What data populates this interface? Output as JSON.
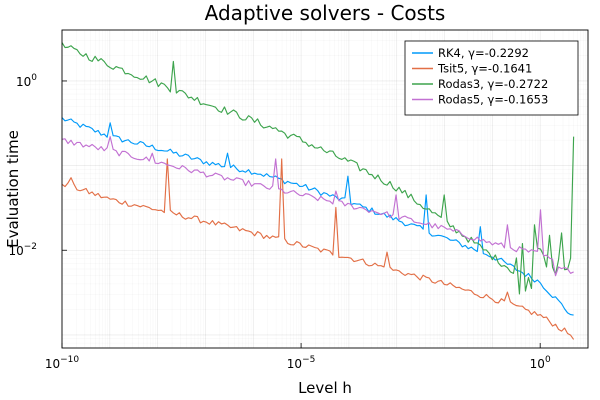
{
  "chart_data": {
    "type": "line",
    "title": "Adaptive solvers - Costs",
    "xlabel": "Level h",
    "ylabel": "Evaluation time",
    "xscale": "log",
    "yscale": "log",
    "xlim": [
      1e-10,
      10
    ],
    "ylim": [
      0.0007,
      4
    ],
    "x_ticks": [
      {
        "value": 1e-10,
        "base": "10",
        "exp": "−10"
      },
      {
        "value": 1e-05,
        "base": "10",
        "exp": "−5"
      },
      {
        "value": 1,
        "base": "10",
        "exp": "0"
      }
    ],
    "y_ticks": [
      {
        "value": 0.01,
        "base": "10",
        "exp": "−2"
      },
      {
        "value": 1,
        "base": "10",
        "exp": "0"
      }
    ],
    "grid": true,
    "legend_position": "top-right",
    "series": [
      {
        "name": "RK4, γ=-0.2292",
        "color": "#009AFA",
        "x": [
          1e-10,
          1e-09,
          1e-08,
          1e-07,
          1e-06,
          1e-05,
          0.0001,
          0.001,
          0.01,
          0.1,
          1,
          5
        ],
        "values": [
          0.36,
          0.22,
          0.16,
          0.11,
          0.085,
          0.058,
          0.037,
          0.023,
          0.014,
          0.0085,
          0.0042,
          0.0016
        ],
        "spikes": [
          [
            1e-09,
            0.32
          ],
          [
            3e-07,
            0.14
          ],
          [
            0.0001,
            0.075
          ],
          [
            0.004,
            0.045
          ],
          [
            0.06,
            0.019
          ]
        ]
      },
      {
        "name": "Tsit5, γ=-0.1641",
        "color": "#E26F46",
        "x": [
          1e-10,
          1e-09,
          1e-08,
          1e-07,
          1e-06,
          1e-05,
          0.0001,
          0.001,
          0.01,
          0.1,
          1,
          5
        ],
        "values": [
          0.062,
          0.04,
          0.03,
          0.022,
          0.016,
          0.0115,
          0.0082,
          0.0057,
          0.004,
          0.0027,
          0.0017,
          0.00095
        ],
        "spikes": [
          [
            1.5e-10,
            0.072
          ],
          [
            1.5e-08,
            0.12
          ],
          [
            4e-06,
            0.12
          ],
          [
            5e-05,
            0.032
          ],
          [
            0.0006,
            0.0095
          ],
          [
            0.2,
            0.0032
          ]
        ]
      },
      {
        "name": "Rodas3, γ=-0.2722",
        "color": "#3DA44D",
        "x": [
          1e-10,
          1e-09,
          1e-08,
          1e-07,
          1e-06,
          1e-05,
          0.0001,
          0.001,
          0.01,
          0.1,
          0.3,
          1,
          2,
          5
        ],
        "values": [
          2.6,
          1.55,
          0.95,
          0.55,
          0.34,
          0.2,
          0.11,
          0.055,
          0.022,
          0.0085,
          0.0055,
          0.0065,
          0.0075,
          0.008
        ],
        "spikes": [
          [
            2e-08,
            1.7
          ],
          [
            3e-06,
            0.28
          ],
          [
            0.01,
            0.045
          ],
          [
            0.4,
            0.012
          ],
          [
            0.8,
            0.02
          ],
          [
            1.5,
            0.015
          ],
          [
            3,
            0.016
          ],
          [
            5,
            0.22
          ]
        ]
      },
      {
        "name": "Rodas5, γ=-0.1653",
        "color": "#C271D2",
        "x": [
          1e-10,
          1e-09,
          1e-08,
          1e-07,
          1e-06,
          1e-05,
          0.0001,
          0.001,
          0.01,
          0.1,
          1,
          5
        ],
        "values": [
          0.2,
          0.15,
          0.11,
          0.08,
          0.06,
          0.045,
          0.034,
          0.025,
          0.018,
          0.012,
          0.009,
          0.0055
        ],
        "spikes": [
          [
            1e-09,
            0.22
          ],
          [
            8e-09,
            0.14
          ],
          [
            3e-06,
            0.12
          ],
          [
            5e-05,
            0.05
          ],
          [
            0.001,
            0.045
          ],
          [
            0.2,
            0.02
          ],
          [
            1,
            0.03
          ],
          [
            2,
            0.005
          ]
        ]
      }
    ]
  }
}
